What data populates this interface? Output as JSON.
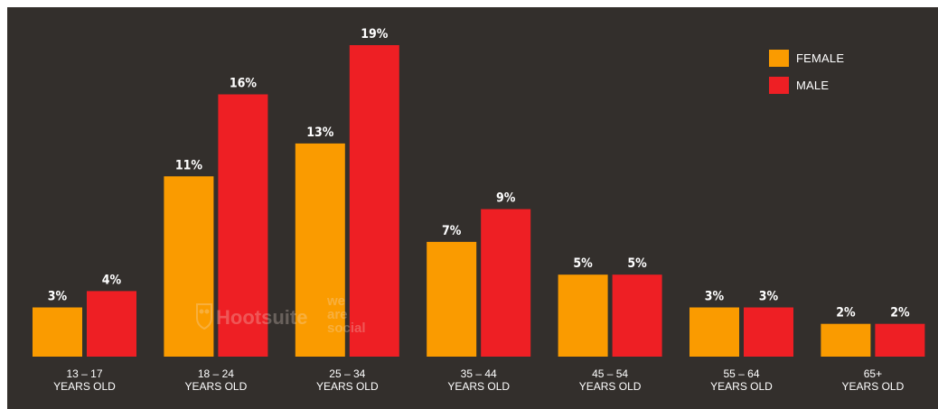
{
  "colors": {
    "background": "#332f2c",
    "female": "#fa9b00",
    "male": "#ee1f24",
    "text": "#ffffff"
  },
  "watermark": {
    "brand": "Hootsuite",
    "partner_lines": [
      "we",
      "are",
      "social"
    ]
  },
  "chart_data": {
    "type": "bar",
    "categories": [
      [
        "13 – 17",
        "YEARS OLD"
      ],
      [
        "18 – 24",
        "YEARS OLD"
      ],
      [
        "25 – 34",
        "YEARS OLD"
      ],
      [
        "35 – 44",
        "YEARS OLD"
      ],
      [
        "45 – 54",
        "YEARS OLD"
      ],
      [
        "55 – 64",
        "YEARS OLD"
      ],
      [
        "65+",
        "YEARS OLD"
      ]
    ],
    "series": [
      {
        "name": "FEMALE",
        "color": "#fa9b00",
        "values": [
          3,
          11,
          13,
          7,
          5,
          3,
          2
        ],
        "labels": [
          "3%",
          "11%",
          "13%",
          "7%",
          "5%",
          "3%",
          "2%"
        ]
      },
      {
        "name": "MALE",
        "color": "#ee1f24",
        "values": [
          4,
          16,
          19,
          9,
          5,
          3,
          2
        ],
        "labels": [
          "4%",
          "16%",
          "19%",
          "9%",
          "5%",
          "3%",
          "2%"
        ]
      }
    ],
    "ylim": [
      0,
      19
    ],
    "grid": false,
    "legend_position": "top-right"
  }
}
